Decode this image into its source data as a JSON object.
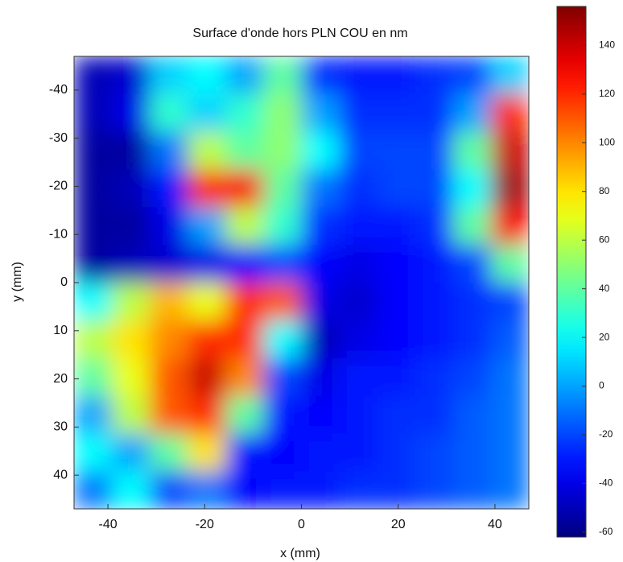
{
  "chart_data": {
    "type": "heatmap",
    "title": "Surface d'onde hors PLN COU en nm",
    "xlabel": "x (mm)",
    "ylabel": "y (mm)",
    "colormap": "jet",
    "x": [
      -43.1,
      -35.3,
      -27.4,
      -19.6,
      -11.8,
      -3.9,
      3.9,
      11.8,
      19.6,
      27.4,
      35.3,
      43.1
    ],
    "y": [
      -43.1,
      -35.3,
      -27.4,
      -19.6,
      -11.8,
      -3.9,
      3.9,
      11.8,
      19.6,
      27.4,
      35.3,
      43.1
    ],
    "z": [
      [
        -50,
        -45,
        10,
        20,
        0,
        40,
        -25,
        -30,
        -30,
        -25,
        -20,
        10
      ],
      [
        -50,
        -40,
        30,
        10,
        30,
        50,
        0,
        -25,
        -25,
        -25,
        0,
        120
      ],
      [
        -55,
        -55,
        -10,
        60,
        40,
        50,
        20,
        -20,
        -20,
        -20,
        40,
        140
      ],
      [
        -55,
        -50,
        -30,
        120,
        130,
        40,
        -10,
        -25,
        -20,
        -20,
        20,
        150
      ],
      [
        -55,
        -55,
        -40,
        0,
        60,
        30,
        -25,
        -30,
        -30,
        -25,
        40,
        130
      ],
      [
        -55,
        -50,
        -45,
        -40,
        -35,
        -20,
        -35,
        -40,
        -35,
        -30,
        -20,
        40
      ],
      [
        20,
        60,
        90,
        70,
        120,
        110,
        -40,
        -45,
        -35,
        -30,
        -25,
        -20
      ],
      [
        60,
        80,
        100,
        120,
        120,
        20,
        -50,
        -40,
        -35,
        -30,
        -25,
        -15
      ],
      [
        40,
        70,
        110,
        140,
        100,
        -20,
        -40,
        -30,
        -30,
        -25,
        -20,
        -10
      ],
      [
        0,
        60,
        110,
        120,
        40,
        -30,
        -35,
        -30,
        -25,
        -25,
        -15,
        -10
      ],
      [
        20,
        0,
        40,
        80,
        -30,
        -35,
        -30,
        -30,
        -25,
        -20,
        -15,
        -10
      ],
      [
        -10,
        20,
        -20,
        -10,
        -35,
        -30,
        -30,
        -25,
        -25,
        -20,
        -15,
        -10
      ]
    ],
    "xlim": [
      -47,
      47
    ],
    "ylim": [
      -47,
      47
    ],
    "y_reversed": true,
    "xticks": [
      -40,
      -20,
      0,
      20,
      40
    ],
    "yticks": [
      -40,
      -30,
      -20,
      -10,
      0,
      10,
      20,
      30,
      40
    ],
    "clim": [
      -62,
      156
    ],
    "cticks": [
      -60,
      -40,
      -20,
      0,
      20,
      40,
      60,
      80,
      100,
      120,
      140
    ]
  }
}
